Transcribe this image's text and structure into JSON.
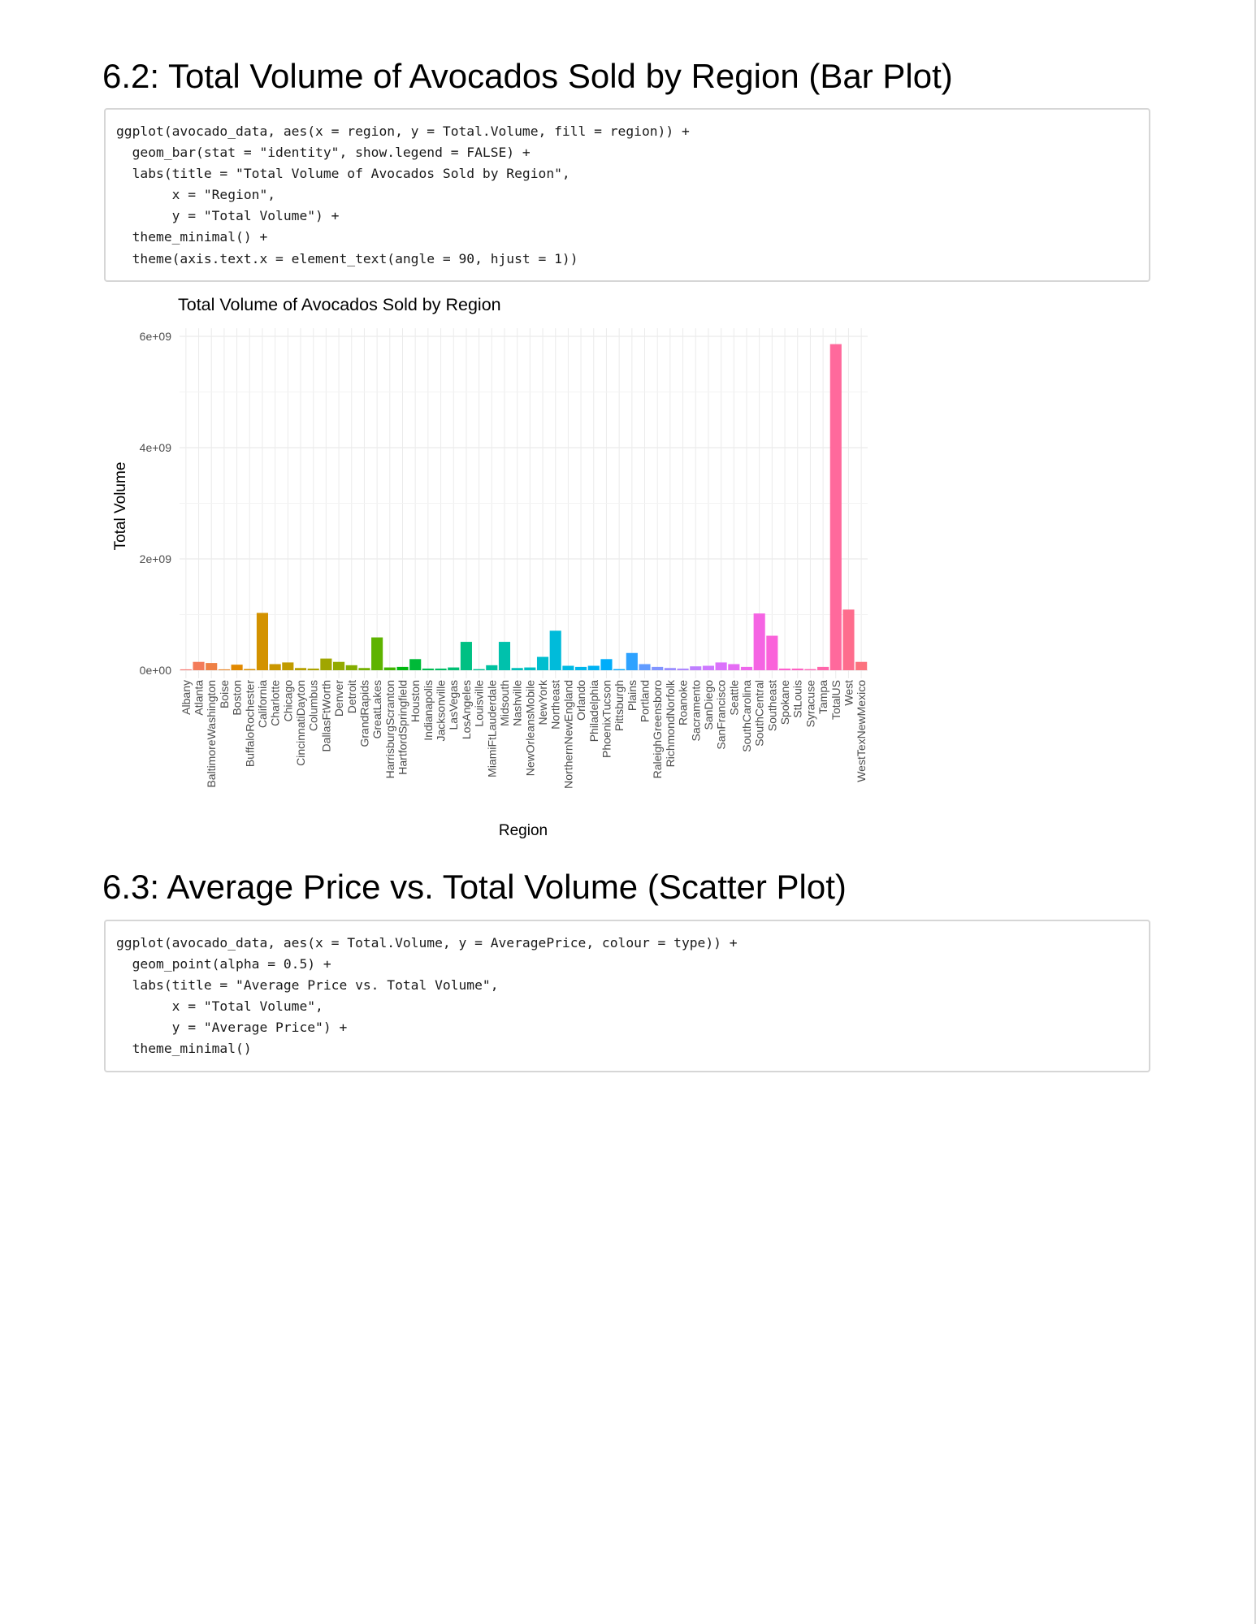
{
  "sections": [
    {
      "title": "6.2: Total Volume of Avocados Sold by Region (Bar Plot)",
      "code": [
        "ggplot(avocado_data, aes(x = region, y = Total.Volume, fill = region)) +",
        "  geom_bar(stat = \"identity\", show.legend = FALSE) +",
        "  labs(title = \"Total Volume of Avocados Sold by Region\",",
        "       x = \"Region\",",
        "       y = \"Total Volume\") +",
        "  theme_minimal() +",
        "  theme(axis.text.x = element_text(angle = 90, hjust = 1))"
      ]
    },
    {
      "title": "6.3: Average Price vs. Total Volume (Scatter Plot)",
      "code": [
        "ggplot(avocado_data, aes(x = Total.Volume, y = AveragePrice, colour = type)) +",
        "  geom_point(alpha = 0.5) +",
        "  labs(title = \"Average Price vs. Total Volume\",",
        "       x = \"Total Volume\",",
        "       y = \"Average Price\") +",
        "  theme_minimal()"
      ]
    }
  ],
  "chart_data": {
    "type": "bar",
    "title": "Total Volume of Avocados Sold by Region",
    "xlabel": "Region",
    "ylabel": "Total Volume",
    "ylim": [
      0,
      6000000000
    ],
    "yticks": [
      0,
      2000000000,
      4000000000,
      6000000000
    ],
    "ytick_labels": [
      "0e+00",
      "2e+09",
      "4e+09",
      "6e+09"
    ],
    "grid": true,
    "legend": "none",
    "categories": [
      "Albany",
      "Atlanta",
      "BaltimoreWashington",
      "Boise",
      "Boston",
      "BuffaloRochester",
      "California",
      "Charlotte",
      "Chicago",
      "CincinnatiDayton",
      "Columbus",
      "DallasFtWorth",
      "Denver",
      "Detroit",
      "GrandRapids",
      "GreatLakes",
      "HarrisburgScranton",
      "HartfordSpringfield",
      "Houston",
      "Indianapolis",
      "Jacksonville",
      "LasVegas",
      "LosAngeles",
      "Louisville",
      "MiamiFtLauderdale",
      "Midsouth",
      "Nashville",
      "NewOrleansMobile",
      "NewYork",
      "Northeast",
      "NorthernNewEngland",
      "Orlando",
      "Philadelphia",
      "PhoenixTucson",
      "Pittsburgh",
      "Plains",
      "Portland",
      "RaleighGreensboro",
      "RichmondNorfolk",
      "Roanoke",
      "Sacramento",
      "SanDiego",
      "SanFrancisco",
      "Seattle",
      "SouthCarolina",
      "SouthCentral",
      "Southeast",
      "Spokane",
      "StLouis",
      "Syracuse",
      "Tampa",
      "TotalUS",
      "West",
      "WestTexNewMexico"
    ],
    "values": [
      16000000,
      150000000,
      130000000,
      16000000,
      100000000,
      22000000,
      1030000000,
      110000000,
      140000000,
      40000000,
      30000000,
      210000000,
      150000000,
      90000000,
      40000000,
      590000000,
      50000000,
      60000000,
      200000000,
      30000000,
      30000000,
      50000000,
      510000000,
      20000000,
      90000000,
      510000000,
      40000000,
      50000000,
      240000000,
      710000000,
      80000000,
      60000000,
      80000000,
      200000000,
      20000000,
      310000000,
      110000000,
      60000000,
      40000000,
      30000000,
      70000000,
      80000000,
      140000000,
      110000000,
      60000000,
      1020000000,
      620000000,
      30000000,
      30000000,
      20000000,
      60000000,
      5860000000,
      1090000000,
      150000000
    ]
  }
}
